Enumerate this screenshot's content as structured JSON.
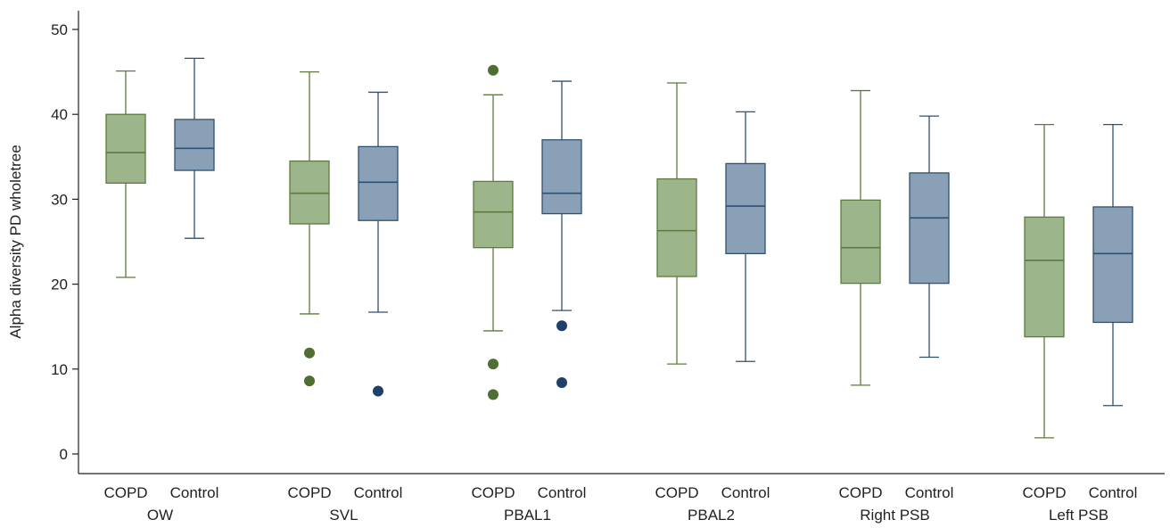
{
  "chart_data": {
    "type": "box",
    "ylabel": "Alpha diversity PD wholetree",
    "xlabel": "",
    "ylim": [
      0,
      50
    ],
    "yticks": [
      0,
      10,
      20,
      30,
      40,
      50
    ],
    "grid": false,
    "colors": {
      "COPD": {
        "fill": "#9db58a",
        "stroke": "#5d7b3e",
        "outlier": "#4e6e33"
      },
      "Control": {
        "fill": "#8aa0b7",
        "stroke": "#2f5172",
        "outlier": "#1f4068"
      }
    },
    "groups": [
      {
        "label": "OW",
        "boxes": [
          {
            "label": "COPD",
            "series": "COPD",
            "min": 20.8,
            "q1": 31.9,
            "median": 35.5,
            "q3": 40.0,
            "max": 45.1,
            "outliers": []
          },
          {
            "label": "Control",
            "series": "Control",
            "min": 25.4,
            "q1": 33.4,
            "median": 36.0,
            "q3": 39.4,
            "max": 46.6,
            "outliers": []
          }
        ]
      },
      {
        "label": "SVL",
        "boxes": [
          {
            "label": "COPD",
            "series": "COPD",
            "min": 16.5,
            "q1": 27.1,
            "median": 30.7,
            "q3": 34.5,
            "max": 45.0,
            "outliers": [
              11.9,
              8.6
            ]
          },
          {
            "label": "Control",
            "series": "Control",
            "min": 16.7,
            "q1": 27.5,
            "median": 32.0,
            "q3": 36.2,
            "max": 42.6,
            "outliers": [
              7.4
            ]
          }
        ]
      },
      {
        "label": "PBAL1",
        "boxes": [
          {
            "label": "COPD",
            "series": "COPD",
            "min": 14.5,
            "q1": 24.3,
            "median": 28.5,
            "q3": 32.1,
            "max": 42.3,
            "outliers": [
              45.2,
              10.6,
              7.0
            ]
          },
          {
            "label": "Control",
            "series": "Control",
            "min": 16.9,
            "q1": 28.3,
            "median": 30.7,
            "q3": 37.0,
            "max": 43.9,
            "outliers": [
              15.1,
              8.4
            ]
          }
        ]
      },
      {
        "label": "PBAL2",
        "boxes": [
          {
            "label": "COPD",
            "series": "COPD",
            "min": 10.6,
            "q1": 20.9,
            "median": 26.3,
            "q3": 32.4,
            "max": 43.7,
            "outliers": []
          },
          {
            "label": "Control",
            "series": "Control",
            "min": 10.9,
            "q1": 23.6,
            "median": 29.2,
            "q3": 34.2,
            "max": 40.3,
            "outliers": []
          }
        ]
      },
      {
        "label": "Right PSB",
        "boxes": [
          {
            "label": "COPD",
            "series": "COPD",
            "min": 8.1,
            "q1": 20.1,
            "median": 24.3,
            "q3": 29.9,
            "max": 42.8,
            "outliers": []
          },
          {
            "label": "Control",
            "series": "Control",
            "min": 11.4,
            "q1": 20.1,
            "median": 27.8,
            "q3": 33.1,
            "max": 39.8,
            "outliers": []
          }
        ]
      },
      {
        "label": "Left PSB",
        "boxes": [
          {
            "label": "COPD",
            "series": "COPD",
            "min": 1.9,
            "q1": 13.8,
            "median": 22.8,
            "q3": 27.9,
            "max": 38.8,
            "outliers": []
          },
          {
            "label": "Control",
            "series": "Control",
            "min": 5.7,
            "q1": 15.5,
            "median": 23.6,
            "q3": 29.1,
            "max": 38.8,
            "outliers": []
          }
        ]
      }
    ]
  }
}
